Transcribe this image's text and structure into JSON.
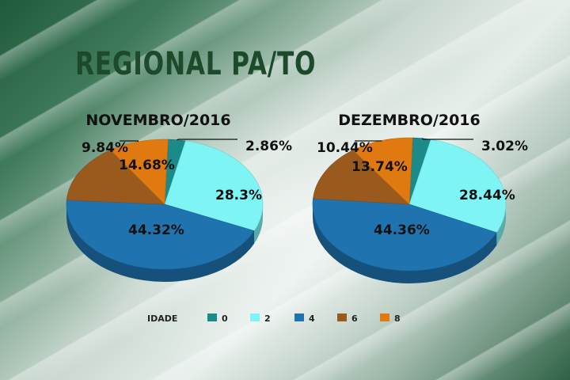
{
  "header": {
    "title": "REGIONAL PA/TO"
  },
  "legend": {
    "title": "IDADE",
    "items": [
      {
        "label": "0",
        "color": "#1d8a8a"
      },
      {
        "label": "2",
        "color": "#7ff4f4"
      },
      {
        "label": "4",
        "color": "#1f74b0"
      },
      {
        "label": "6",
        "color": "#9a5a1e"
      },
      {
        "label": "8",
        "color": "#e07a10"
      }
    ]
  },
  "chart_data": [
    {
      "type": "pie",
      "title": "NOVEMBRO/2016",
      "categories": [
        "0",
        "2",
        "4",
        "6",
        "8"
      ],
      "values": [
        2.86,
        28.3,
        44.32,
        14.68,
        9.84
      ],
      "value_labels": [
        "2.86%",
        "28.3%",
        "44.32%",
        "14.68%",
        "9.84%"
      ]
    },
    {
      "type": "pie",
      "title": "DEZEMBRO/2016",
      "categories": [
        "0",
        "2",
        "4",
        "6",
        "8"
      ],
      "values": [
        3.02,
        28.44,
        44.36,
        13.74,
        10.44
      ],
      "value_labels": [
        "3.02%",
        "28.44%",
        "44.36%",
        "13.74%",
        "10.44%"
      ]
    }
  ]
}
